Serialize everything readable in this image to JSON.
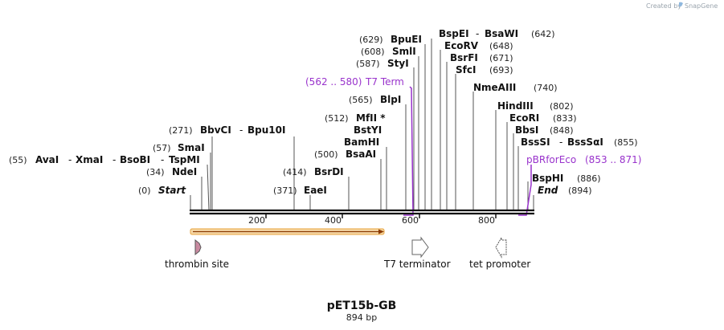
{
  "map": {
    "name": "pET15b-GB",
    "length_label": "894 bp",
    "credit": "Created by",
    "brand": "SnapGene"
  },
  "ruler": {
    "ticks": [
      "200",
      "400",
      "600",
      "800"
    ]
  },
  "sites": {
    "start": {
      "pos": "(0)",
      "name": "Start"
    },
    "end": {
      "pos": "(894)",
      "name": "End"
    },
    "ndei": {
      "pos": "(34)",
      "name": "NdeI"
    },
    "avai": {
      "pos": "(55)",
      "names": [
        "AvaI",
        "XmaI",
        "BsoBI",
        "TspMI"
      ]
    },
    "smai": {
      "pos": "(57)",
      "name": "SmaI"
    },
    "bbvci": {
      "pos": "(271)",
      "names": [
        "BbvCI",
        "Bpu10I"
      ]
    },
    "eaei": {
      "pos": "(371)",
      "name": "EaeI"
    },
    "bsrdi": {
      "pos": "(414)",
      "name": "BsrDI"
    },
    "bsaai": {
      "pos": "(500)",
      "name": "BsaAI"
    },
    "bamhi": {
      "name": "BamHI"
    },
    "bstyi": {
      "name": "BstYI"
    },
    "mfli": {
      "pos": "(512)",
      "name": "MfII *"
    },
    "blpi": {
      "pos": "(565)",
      "name": "BlpI"
    },
    "styi": {
      "pos": "(587)",
      "name": "StyI"
    },
    "smli": {
      "pos": "(608)",
      "name": "SmlI"
    },
    "bpuei": {
      "pos": "(629)",
      "name": "BpuEI"
    },
    "bspei": {
      "pos": "(642)",
      "names": [
        "BspEI",
        "BsaWI"
      ]
    },
    "ecorv": {
      "pos": "(648)",
      "name": "EcoRV"
    },
    "bsrfi": {
      "pos": "(671)",
      "name": "BsrFI"
    },
    "sfci": {
      "pos": "(693)",
      "name": "SfcI"
    },
    "nmeaiii": {
      "pos": "(740)",
      "name": "NmeAIII"
    },
    "hindiii": {
      "pos": "(802)",
      "name": "HindIII"
    },
    "ecori": {
      "pos": "(833)",
      "name": "EcoRI"
    },
    "bbsi": {
      "pos": "(848)",
      "name": "BbsI"
    },
    "bsssi": {
      "pos": "(855)",
      "names": [
        "BssSI",
        "BssSαI"
      ]
    },
    "bsphi": {
      "pos": "(886)",
      "name": "BspHI"
    }
  },
  "primers": {
    "t7term": {
      "range": "(562 .. 580)",
      "name": "T7 Term"
    },
    "pbrforeco": {
      "name": "pBRforEco",
      "range": "(853 .. 871)"
    }
  },
  "features": {
    "thrombin": "thrombin site",
    "t7_terminator": "T7 terminator",
    "tet_promoter": "tet promoter"
  },
  "colors": {
    "primer": "#9933cc",
    "orf_fill": "#f6d9a8",
    "orf_border": "#e8a33c",
    "orf_arrow": "#8b3a00",
    "thrombin": "#c88aa0"
  }
}
